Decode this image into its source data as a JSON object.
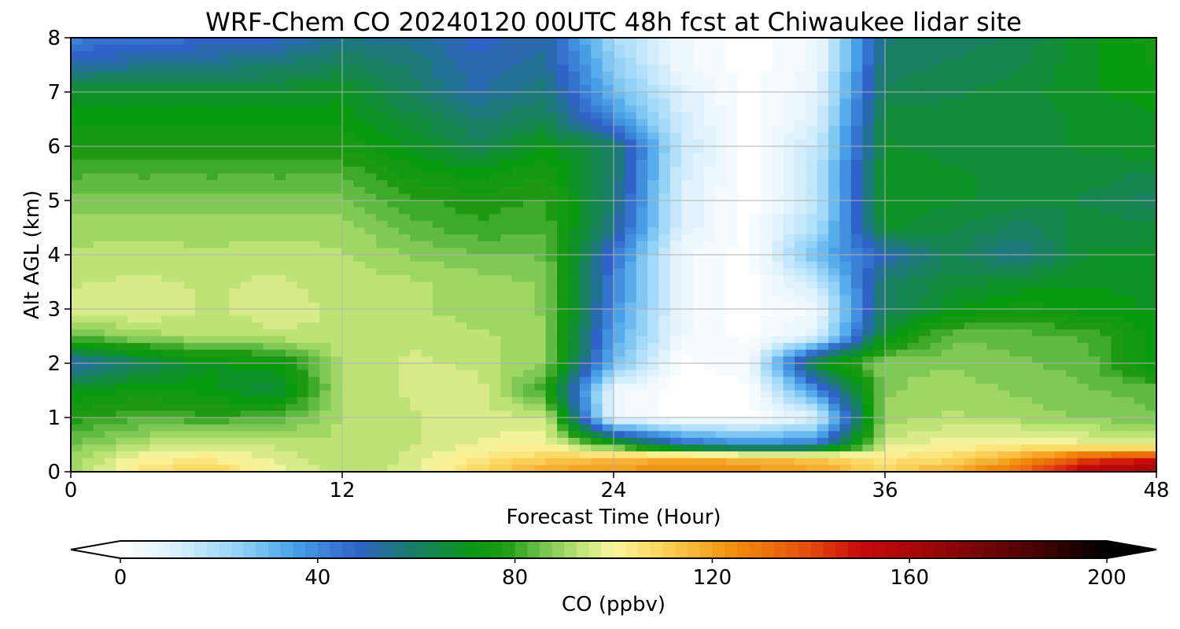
{
  "chart_data": {
    "type": "heatmap",
    "title": "WRF-Chem CO  20240120 00UTC 48h fcst at Chiwaukee lidar site",
    "xlabel": "Forecast Time (Hour)",
    "ylabel": "Alt AGL (km)",
    "xlim": [
      0,
      48
    ],
    "ylim": [
      0,
      8
    ],
    "xticks": [
      0,
      12,
      24,
      36,
      48
    ],
    "yticks": [
      0,
      1,
      2,
      3,
      4,
      5,
      6,
      7,
      8
    ],
    "grid": true,
    "x": [
      0,
      3,
      6,
      9,
      12,
      15,
      18,
      21,
      24,
      27,
      30,
      33,
      36,
      39,
      42,
      45,
      48
    ],
    "y": [
      0,
      0.25,
      0.5,
      1,
      1.5,
      2,
      2.5,
      3,
      3.5,
      4,
      4.5,
      5,
      5.5,
      6,
      6.5,
      7,
      7.5,
      8
    ],
    "z": [
      [
        88,
        105,
        112,
        100,
        92,
        96,
        110,
        120,
        122,
        125,
        124,
        120,
        110,
        118,
        135,
        158,
        165
      ],
      [
        90,
        100,
        103,
        96,
        92,
        95,
        104,
        110,
        115,
        118,
        116,
        112,
        104,
        108,
        120,
        140,
        145
      ],
      [
        86,
        92,
        96,
        94,
        92,
        94,
        98,
        100,
        78,
        50,
        40,
        45,
        95,
        100,
        102,
        98,
        96
      ],
      [
        78,
        82,
        80,
        82,
        92,
        94,
        96,
        95,
        5,
        0,
        0,
        10,
        90,
        92,
        90,
        88,
        86
      ],
      [
        70,
        74,
        72,
        65,
        92,
        95,
        96,
        80,
        5,
        0,
        0,
        40,
        88,
        90,
        88,
        86,
        84
      ],
      [
        50,
        60,
        70,
        72,
        92,
        95,
        94,
        88,
        30,
        0,
        5,
        70,
        88,
        88,
        86,
        84,
        70
      ],
      [
        84,
        90,
        92,
        94,
        94,
        94,
        92,
        90,
        35,
        5,
        0,
        10,
        70,
        85,
        84,
        82,
        72
      ],
      [
        96,
        98,
        94,
        96,
        94,
        92,
        90,
        88,
        40,
        5,
        0,
        5,
        60,
        70,
        75,
        72,
        70
      ],
      [
        94,
        95,
        94,
        95,
        93,
        92,
        90,
        88,
        42,
        5,
        0,
        15,
        60,
        66,
        68,
        70,
        70
      ],
      [
        92,
        93,
        92,
        93,
        92,
        88,
        86,
        85,
        45,
        5,
        0,
        30,
        50,
        62,
        55,
        68,
        68
      ],
      [
        90,
        90,
        90,
        90,
        90,
        84,
        80,
        82,
        55,
        10,
        0,
        20,
        68,
        65,
        60,
        66,
        66
      ],
      [
        86,
        86,
        86,
        86,
        86,
        80,
        78,
        80,
        58,
        10,
        0,
        15,
        70,
        68,
        66,
        64,
        60
      ],
      [
        82,
        82,
        82,
        82,
        82,
        75,
        72,
        76,
        60,
        12,
        0,
        15,
        70,
        68,
        66,
        66,
        64
      ],
      [
        76,
        76,
        76,
        76,
        76,
        70,
        62,
        72,
        60,
        15,
        0,
        15,
        68,
        66,
        66,
        68,
        70
      ],
      [
        72,
        72,
        72,
        72,
        72,
        66,
        58,
        62,
        40,
        12,
        0,
        10,
        66,
        66,
        66,
        68,
        70
      ],
      [
        68,
        68,
        68,
        68,
        70,
        60,
        52,
        58,
        30,
        10,
        0,
        8,
        62,
        64,
        66,
        70,
        72
      ],
      [
        52,
        54,
        56,
        58,
        62,
        58,
        50,
        54,
        25,
        5,
        0,
        5,
        60,
        62,
        64,
        70,
        74
      ],
      [
        42,
        44,
        46,
        48,
        55,
        54,
        48,
        52,
        20,
        5,
        0,
        5,
        58,
        60,
        62,
        70,
        75
      ]
    ],
    "colorbar": {
      "label": "CO  (ppbv)",
      "min": 0,
      "max": 200,
      "ticks": [
        0,
        40,
        80,
        120,
        160,
        200
      ],
      "extend": "both",
      "stops": [
        {
          "v": 0,
          "c": "#ffffff"
        },
        {
          "v": 10,
          "c": "#dff2fd"
        },
        {
          "v": 25,
          "c": "#8dd0f7"
        },
        {
          "v": 35,
          "c": "#4aa3e8"
        },
        {
          "v": 48,
          "c": "#2f63c9"
        },
        {
          "v": 58,
          "c": "#1a7a70"
        },
        {
          "v": 72,
          "c": "#0a9a10"
        },
        {
          "v": 78,
          "c": "#1e9a12"
        },
        {
          "v": 85,
          "c": "#6cc04a"
        },
        {
          "v": 92,
          "c": "#b4e070"
        },
        {
          "v": 100,
          "c": "#fbf6a0"
        },
        {
          "v": 110,
          "c": "#fcd35a"
        },
        {
          "v": 125,
          "c": "#f28c0a"
        },
        {
          "v": 140,
          "c": "#e34a0c"
        },
        {
          "v": 150,
          "c": "#c80a0a"
        },
        {
          "v": 165,
          "c": "#9a0606"
        },
        {
          "v": 185,
          "c": "#4a0202"
        },
        {
          "v": 200,
          "c": "#000000"
        }
      ]
    }
  }
}
